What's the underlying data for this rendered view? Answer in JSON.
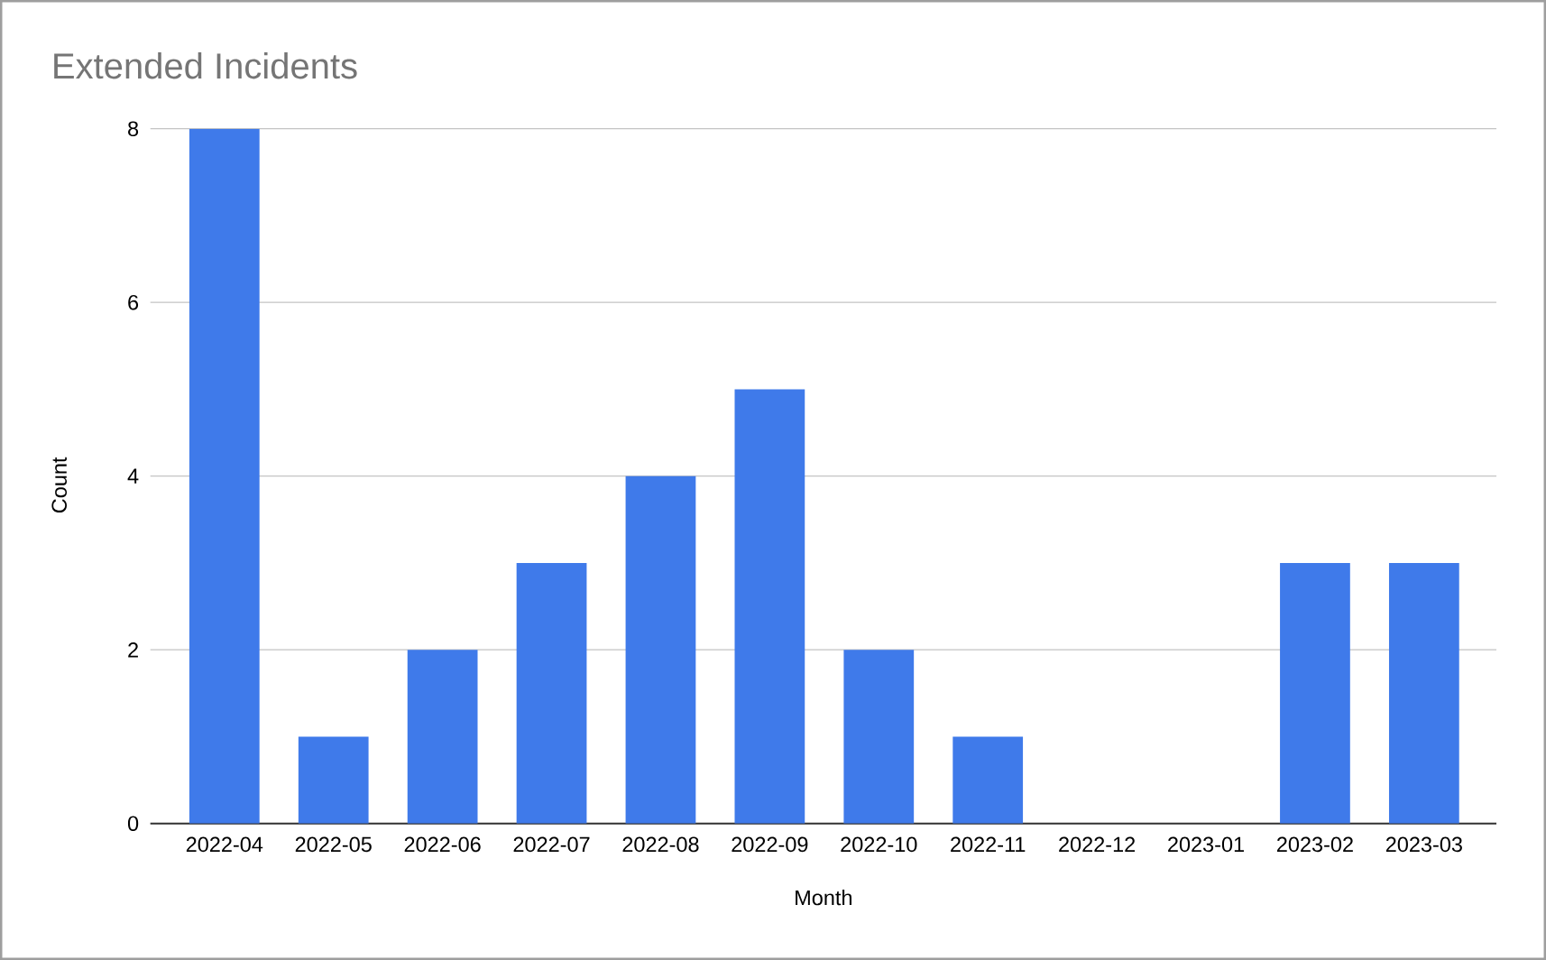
{
  "chart_data": {
    "type": "bar",
    "title": "Extended Incidents",
    "xlabel": "Month",
    "ylabel": "Count",
    "categories": [
      "2022-04",
      "2022-05",
      "2022-06",
      "2022-07",
      "2022-08",
      "2022-09",
      "2022-10",
      "2022-11",
      "2022-12",
      "2023-01",
      "2023-02",
      "2023-03"
    ],
    "values": [
      8,
      1,
      2,
      3,
      4,
      5,
      2,
      1,
      0,
      0,
      3,
      3
    ],
    "color": "#3f7aea",
    "ylim": [
      0,
      8
    ],
    "yticks": [
      0,
      2,
      4,
      6,
      8
    ],
    "grid": "y"
  }
}
